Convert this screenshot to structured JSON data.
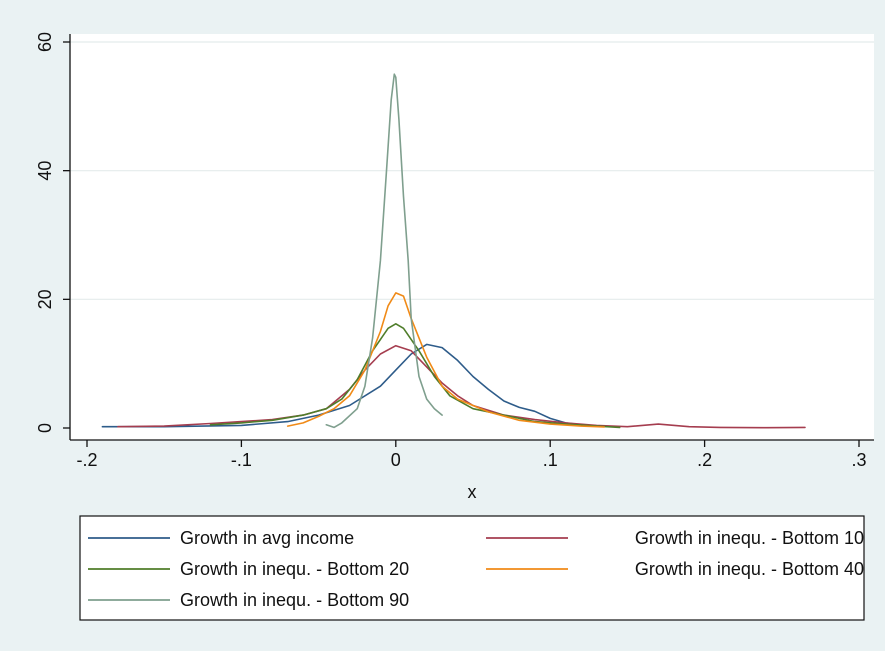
{
  "chart_data": {
    "type": "line",
    "title": "",
    "xlabel": "x",
    "ylabel": "",
    "xlim": [
      -0.2,
      0.3
    ],
    "ylim": [
      0,
      60
    ],
    "x_ticks": [
      -0.2,
      -0.1,
      0,
      0.1,
      0.2,
      0.3
    ],
    "x_tick_labels": [
      "-.2",
      "-.1",
      "0",
      ".1",
      ".2",
      ".3"
    ],
    "y_ticks": [
      0,
      20,
      40,
      60
    ],
    "y_tick_labels": [
      "0",
      "20",
      "40",
      "60"
    ],
    "grid": "horizontal",
    "legend_position": "bottom",
    "series": [
      {
        "name": "Growth in avg income",
        "color": "#2e5c8a",
        "points": [
          [
            -0.19,
            0.2
          ],
          [
            -0.15,
            0.2
          ],
          [
            -0.1,
            0.4
          ],
          [
            -0.07,
            1
          ],
          [
            -0.05,
            2
          ],
          [
            -0.03,
            3.5
          ],
          [
            -0.01,
            6.5
          ],
          [
            0.0,
            9
          ],
          [
            0.01,
            11.5
          ],
          [
            0.02,
            13
          ],
          [
            0.03,
            12.5
          ],
          [
            0.04,
            10.5
          ],
          [
            0.05,
            8
          ],
          [
            0.06,
            6
          ],
          [
            0.07,
            4.2
          ],
          [
            0.08,
            3.2
          ],
          [
            0.09,
            2.6
          ],
          [
            0.1,
            1.5
          ],
          [
            0.11,
            0.8
          ],
          [
            0.12,
            0.5
          ],
          [
            0.14,
            0.2
          ]
        ]
      },
      {
        "name": "Growth in inequ. - Bottom 10",
        "color": "#a53d4f",
        "points": [
          [
            -0.18,
            0.2
          ],
          [
            -0.15,
            0.3
          ],
          [
            -0.12,
            0.7
          ],
          [
            -0.1,
            1
          ],
          [
            -0.08,
            1.3
          ],
          [
            -0.06,
            2
          ],
          [
            -0.045,
            3
          ],
          [
            -0.03,
            6
          ],
          [
            -0.02,
            9
          ],
          [
            -0.01,
            11.5
          ],
          [
            0.0,
            12.8
          ],
          [
            0.01,
            12
          ],
          [
            0.02,
            9.5
          ],
          [
            0.03,
            7
          ],
          [
            0.04,
            5
          ],
          [
            0.05,
            3.5
          ],
          [
            0.07,
            2
          ],
          [
            0.09,
            1.3
          ],
          [
            0.11,
            0.8
          ],
          [
            0.13,
            0.4
          ],
          [
            0.15,
            0.2
          ],
          [
            0.17,
            0.6
          ],
          [
            0.19,
            0.2
          ],
          [
            0.21,
            0.1
          ],
          [
            0.24,
            0.05
          ],
          [
            0.265,
            0.1
          ]
        ]
      },
      {
        "name": "Growth in inequ. - Bottom 20",
        "color": "#4f7d2a",
        "points": [
          [
            -0.12,
            0.5
          ],
          [
            -0.1,
            0.8
          ],
          [
            -0.08,
            1.2
          ],
          [
            -0.06,
            2
          ],
          [
            -0.045,
            3
          ],
          [
            -0.035,
            4.5
          ],
          [
            -0.025,
            7.5
          ],
          [
            -0.015,
            12
          ],
          [
            -0.005,
            15.5
          ],
          [
            0.0,
            16.2
          ],
          [
            0.005,
            15.5
          ],
          [
            0.015,
            12
          ],
          [
            0.025,
            8
          ],
          [
            0.035,
            5
          ],
          [
            0.05,
            3
          ],
          [
            0.07,
            2
          ],
          [
            0.09,
            1
          ],
          [
            0.11,
            0.6
          ],
          [
            0.13,
            0.3
          ],
          [
            0.145,
            0.1
          ]
        ]
      },
      {
        "name": "Growth in inequ. - Bottom 40",
        "color": "#f08a17",
        "points": [
          [
            -0.07,
            0.3
          ],
          [
            -0.06,
            0.8
          ],
          [
            -0.05,
            1.8
          ],
          [
            -0.04,
            3
          ],
          [
            -0.03,
            5
          ],
          [
            -0.02,
            9
          ],
          [
            -0.01,
            15
          ],
          [
            -0.005,
            19
          ],
          [
            0.0,
            21
          ],
          [
            0.005,
            20.5
          ],
          [
            0.01,
            17
          ],
          [
            0.02,
            11
          ],
          [
            0.03,
            6.5
          ],
          [
            0.04,
            4.5
          ],
          [
            0.06,
            2.5
          ],
          [
            0.08,
            1.2
          ],
          [
            0.1,
            0.6
          ],
          [
            0.12,
            0.3
          ],
          [
            0.135,
            0.15
          ]
        ]
      },
      {
        "name": "Growth in inequ. - Bottom 90",
        "color": "#7f9f8e",
        "points": [
          [
            -0.045,
            0.5
          ],
          [
            -0.04,
            0.1
          ],
          [
            -0.035,
            0.8
          ],
          [
            -0.025,
            3
          ],
          [
            -0.02,
            6.5
          ],
          [
            -0.015,
            14
          ],
          [
            -0.01,
            26
          ],
          [
            -0.006,
            40
          ],
          [
            -0.003,
            51
          ],
          [
            -0.001,
            55
          ],
          [
            0.0,
            54.5
          ],
          [
            0.002,
            48
          ],
          [
            0.005,
            36
          ],
          [
            0.008,
            26
          ],
          [
            0.01,
            17
          ],
          [
            0.015,
            8
          ],
          [
            0.02,
            4.5
          ],
          [
            0.025,
            3
          ],
          [
            0.03,
            2
          ]
        ]
      }
    ]
  }
}
